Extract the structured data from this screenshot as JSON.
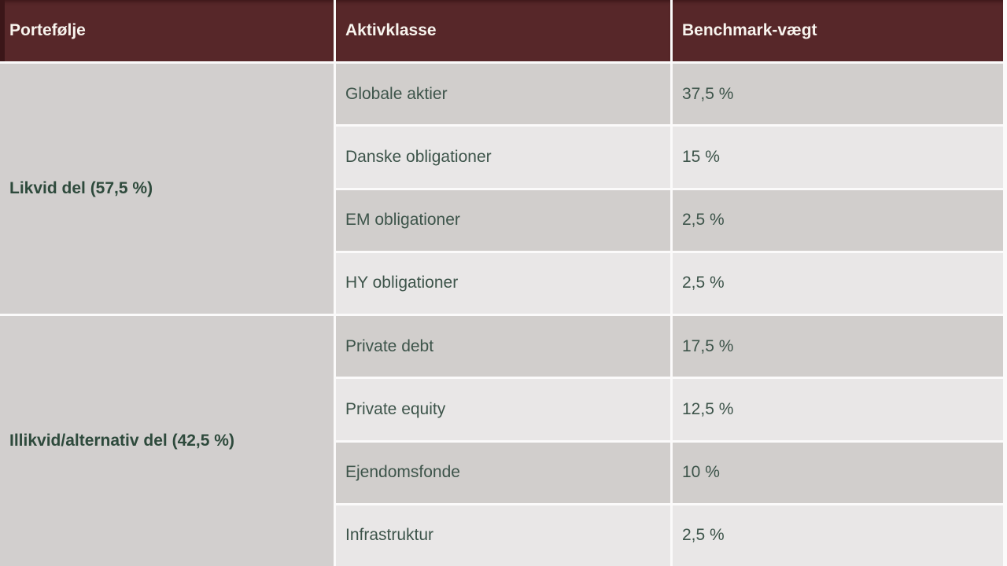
{
  "table": {
    "columns": [
      "Portefølje",
      "Aktivklasse",
      "Benchmark-vægt"
    ],
    "groups": [
      {
        "label": "Likvid del (57,5 %)",
        "rows": [
          {
            "asset": "Globale aktier",
            "weight": "37,5 %"
          },
          {
            "asset": "Danske obligationer",
            "weight": "15 %"
          },
          {
            "asset": "EM obligationer",
            "weight": "2,5 %"
          },
          {
            "asset": "HY obligationer",
            "weight": "2,5 %"
          }
        ]
      },
      {
        "label": "Illikvid/alternativ del (42,5 %)",
        "rows": [
          {
            "asset": "Private debt",
            "weight": "17,5 %"
          },
          {
            "asset": "Private equity",
            "weight": "12,5 %"
          },
          {
            "asset": "Ejendomsfonde",
            "weight": "10 %"
          },
          {
            "asset": "Infrastruktur",
            "weight": "2,5 %"
          }
        ]
      }
    ]
  },
  "colors": {
    "maroon": "#572729",
    "maroon-edge": "#3b1618",
    "gray-dark": "#d1cecc",
    "gray-light": "#e9e7e7",
    "gray-group": "#d2cfce",
    "gap-white": "#fbfafa",
    "text-cell": "#3d544a",
    "text-group": "#2e4a3c",
    "text-header": "#f8f4ee"
  }
}
